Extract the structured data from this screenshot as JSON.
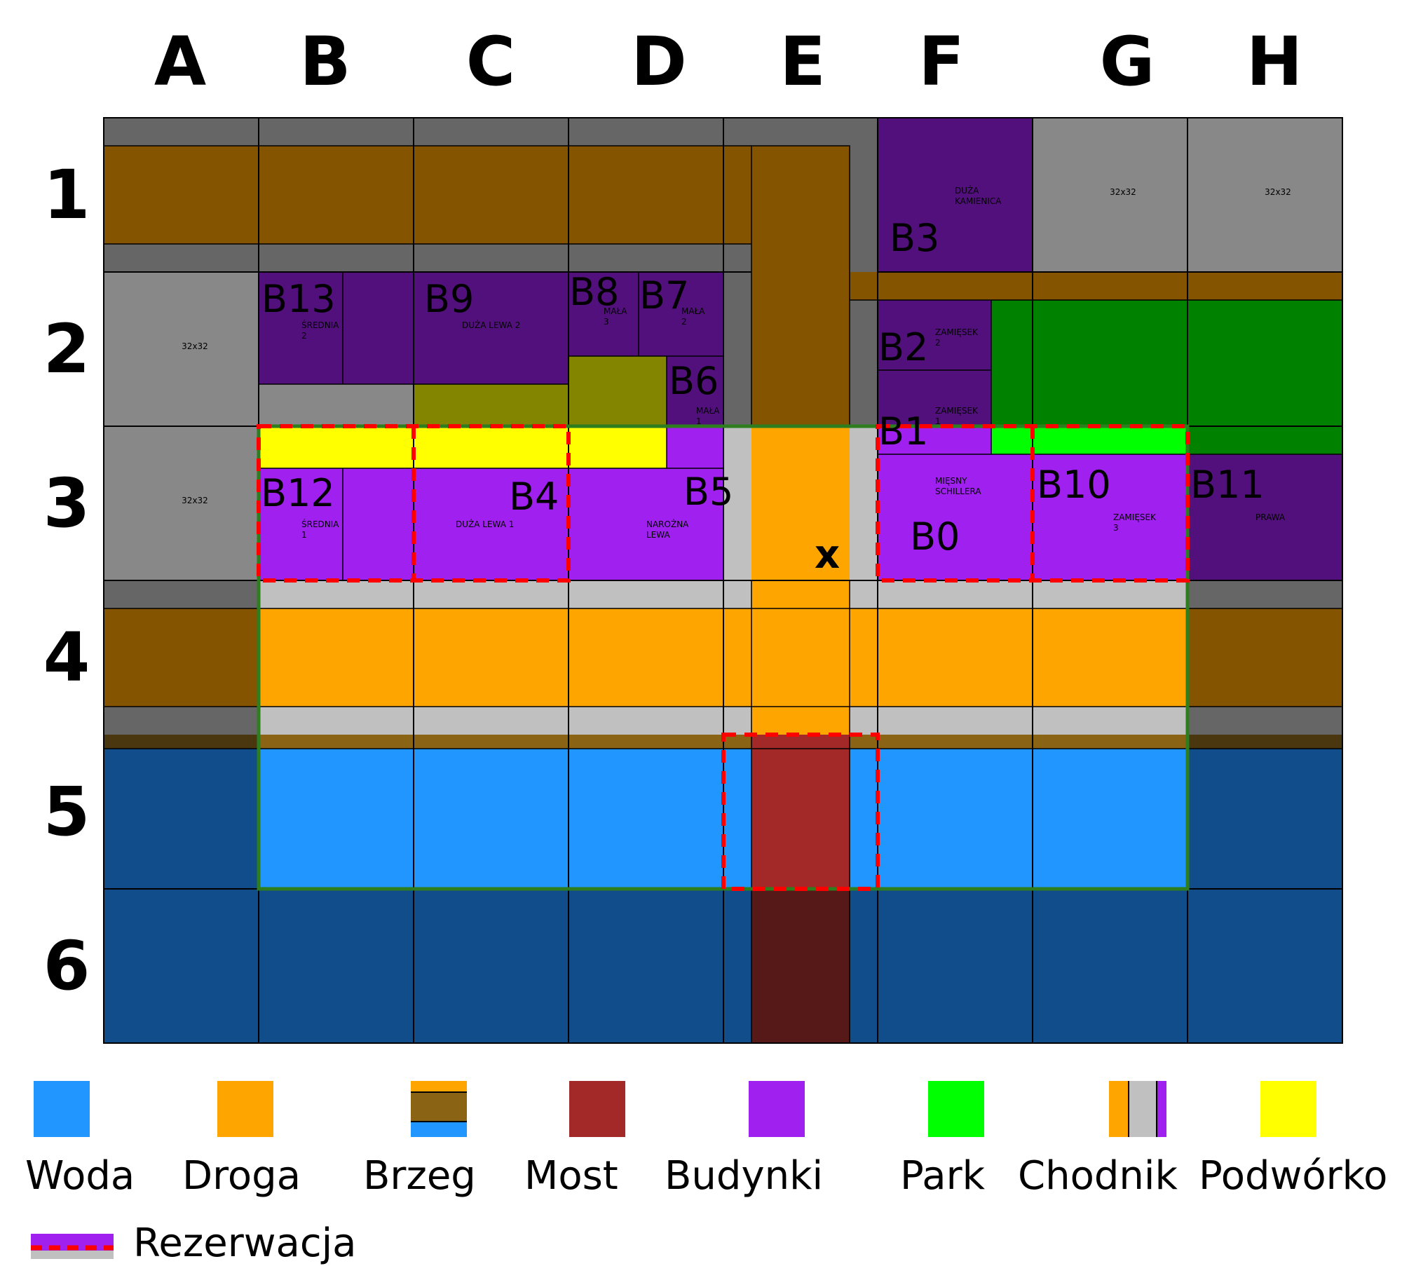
{
  "grid": {
    "columns": [
      "A",
      "B",
      "C",
      "D",
      "E",
      "F",
      "G",
      "H"
    ],
    "rows": [
      "1",
      "2",
      "3",
      "4",
      "5",
      "6"
    ]
  },
  "buildings": {
    "b0": "B0",
    "b1": "B1",
    "b2": "B2",
    "b3": "B3",
    "b4": "B4",
    "b5": "B5",
    "b6": "B6",
    "b7": "B7",
    "b8": "B8",
    "b9": "B9",
    "b10": "B10",
    "b11": "B11",
    "b12": "B12",
    "b13": "B13"
  },
  "building_types": {
    "b3": [
      "DUŻA",
      "KAMIENICA"
    ],
    "b13": [
      "ŚREDNIA",
      "2"
    ],
    "b9": [
      "DUŻA LEWA 2"
    ],
    "b8": [
      "MAŁA",
      "3"
    ],
    "b7": [
      "MAŁA",
      "2"
    ],
    "b6": [
      "MAŁA",
      "1"
    ],
    "b2": [
      "ZAMIĘSEK",
      "2"
    ],
    "b1": [
      "ZAMIĘSEK",
      "1"
    ],
    "b0": [
      "MIĘSNY",
      "SCHILLERA"
    ],
    "b10": [
      "ZAMIĘSEK",
      "3"
    ],
    "b11": [
      "PRAWA"
    ],
    "b12": [
      "ŚREDNIA",
      "1"
    ],
    "b4": [
      "DUŻA LEWA 1"
    ],
    "b5": [
      "NAROŻNA",
      "LEWA"
    ]
  },
  "placeholder_text": "32x32",
  "marker": "x",
  "legend": {
    "water": "Woda",
    "road": "Droga",
    "shore": "Brzeg",
    "bridge": "Most",
    "buildings": "Budynki",
    "park": "Park",
    "sidewalk": "Chodnik",
    "yard": "Podwórko",
    "reservation": "Rezerwacja"
  },
  "colors": {
    "water": "#2196ff",
    "deep_water": "#114d8a",
    "road": "#ffa500",
    "earth": "#845400",
    "shore": "#8a6414",
    "bridge": "#a32929",
    "bridge_dark": "#571818",
    "building": "#9f20ef",
    "building_dark": "#52107c",
    "park": "#00ff00",
    "park_dark": "#008200",
    "sidewalk": "#c0c0c0",
    "yard": "#ffff00",
    "yard_dark": "#838400",
    "ground": "#888888",
    "dark_ground": "#666666",
    "reservation": "#ff0000",
    "active_area": "#2e7d1e"
  }
}
